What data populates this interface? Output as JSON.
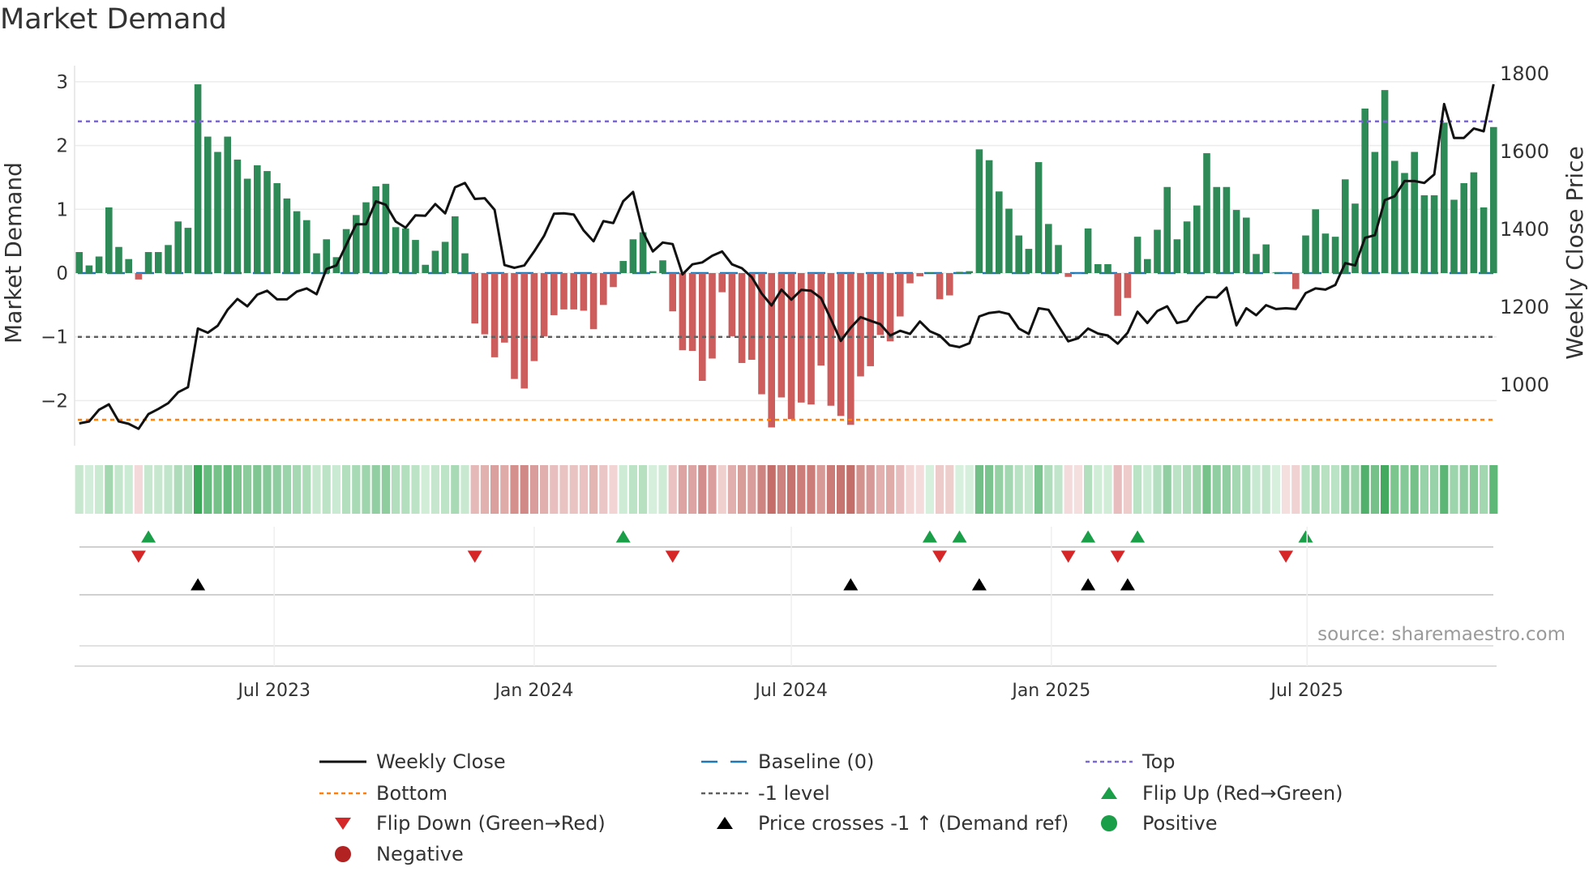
{
  "title": "Market Demand",
  "source_text": "source: sharemaestro.com",
  "colors": {
    "bar_positive": "#2e8b57",
    "bar_negative": "#cd5c5c",
    "close_line": "#111111",
    "baseline": "#1f77b4",
    "top": "#7b68d6",
    "bottom": "#ff7f0e",
    "minus1": "#606060",
    "flip_up": "#1a9e47",
    "flip_down": "#d62728",
    "cross": "#000000",
    "positive": "#1a9e47",
    "negative": "#b22222"
  },
  "chart_data": {
    "type": "bar",
    "title": "Market Demand",
    "ylabel": "Market Demand",
    "y2label": "Weekly Close Price",
    "ylim": [
      -2.71,
      3.25
    ],
    "y2lim": [
      842,
      1819
    ],
    "yticks": [
      "3",
      "2",
      "1",
      "0",
      "−1",
      "−2"
    ],
    "ytick_values": [
      3,
      2,
      1,
      0,
      -1,
      -2
    ],
    "y2ticks": [
      "1800",
      "1600",
      "1400",
      "1200",
      "1000"
    ],
    "y2tick_values": [
      1800,
      1600,
      1400,
      1200,
      1000
    ],
    "grid": true,
    "start_date": "2023-02-13",
    "frequency": "weekly",
    "xticks": [
      {
        "label": "Jul 2023",
        "date": "2023-07-01"
      },
      {
        "label": "Jan 2024",
        "date": "2024-01-01"
      },
      {
        "label": "Jul 2024",
        "date": "2024-07-01"
      },
      {
        "label": "Jan 2025",
        "date": "2025-01-01"
      },
      {
        "label": "Jul 2025",
        "date": "2025-07-01"
      }
    ],
    "reference_lines": {
      "top": 2.38,
      "bottom": -2.3,
      "baseline": 0,
      "minus1": -1
    },
    "demand": [
      0.33,
      0.12,
      0.26,
      1.03,
      0.41,
      0.22,
      -0.1,
      0.33,
      0.33,
      0.44,
      0.81,
      0.71,
      2.96,
      2.14,
      1.9,
      2.14,
      1.78,
      1.48,
      1.69,
      1.6,
      1.41,
      1.17,
      0.97,
      0.83,
      0.31,
      0.53,
      0.25,
      0.69,
      0.91,
      1.11,
      1.36,
      1.4,
      0.72,
      0.7,
      0.52,
      0.13,
      0.35,
      0.49,
      0.89,
      0.31,
      -0.79,
      -0.96,
      -1.32,
      -1.09,
      -1.66,
      -1.81,
      -1.38,
      -0.99,
      -0.66,
      -0.57,
      -0.57,
      -0.59,
      -0.88,
      -0.5,
      -0.22,
      0.19,
      0.53,
      0.64,
      0.03,
      0.2,
      -0.6,
      -1.21,
      -1.22,
      -1.69,
      -1.34,
      -0.3,
      -0.99,
      -1.41,
      -1.36,
      -1.9,
      -2.42,
      -1.95,
      -2.29,
      -2.03,
      -2.06,
      -1.45,
      -2.08,
      -2.24,
      -2.38,
      -1.62,
      -1.46,
      -0.97,
      -1.07,
      -0.68,
      -0.16,
      -0.05,
      0.01,
      -0.41,
      -0.35,
      0.02,
      0.03,
      1.94,
      1.77,
      1.28,
      1.01,
      0.59,
      0.38,
      1.74,
      0.77,
      0.44,
      -0.06,
      -0.01,
      0.7,
      0.14,
      0.14,
      -0.67,
      -0.39,
      0.57,
      0.22,
      0.68,
      1.35,
      0.53,
      0.81,
      1.06,
      1.88,
      1.35,
      1.35,
      0.99,
      0.87,
      0.3,
      0.45,
      0.01,
      -0.01,
      -0.25,
      0.59,
      1.0,
      0.62,
      0.57,
      1.47,
      1.09,
      2.58,
      1.9,
      2.87,
      1.76,
      1.57,
      1.9,
      1.22,
      1.22,
      2.36,
      1.15,
      1.41,
      1.58,
      1.03,
      2.29
    ],
    "weekly_close": [
      899,
      904,
      934,
      948,
      904,
      898,
      885,
      923,
      936,
      951,
      979,
      992,
      1143,
      1132,
      1150,
      1191,
      1219,
      1200,
      1230,
      1240,
      1218,
      1218,
      1238,
      1246,
      1231,
      1296,
      1305,
      1358,
      1411,
      1411,
      1470,
      1461,
      1418,
      1402,
      1434,
      1433,
      1463,
      1439,
      1506,
      1517,
      1476,
      1478,
      1448,
      1306,
      1299,
      1305,
      1341,
      1381,
      1438,
      1439,
      1436,
      1395,
      1367,
      1419,
      1414,
      1470,
      1494,
      1391,
      1341,
      1364,
      1360,
      1282,
      1308,
      1313,
      1330,
      1341,
      1308,
      1298,
      1275,
      1233,
      1202,
      1243,
      1217,
      1242,
      1240,
      1221,
      1167,
      1111,
      1145,
      1172,
      1163,
      1154,
      1125,
      1137,
      1129,
      1161,
      1136,
      1125,
      1100,
      1095,
      1105,
      1174,
      1183,
      1186,
      1180,
      1143,
      1129,
      1195,
      1191,
      1150,
      1110,
      1118,
      1143,
      1130,
      1125,
      1104,
      1132,
      1186,
      1157,
      1188,
      1200,
      1157,
      1163,
      1198,
      1224,
      1223,
      1248,
      1151,
      1195,
      1177,
      1203,
      1193,
      1195,
      1193,
      1234,
      1246,
      1243,
      1255,
      1311,
      1305,
      1376,
      1383,
      1473,
      1483,
      1522,
      1522,
      1517,
      1539,
      1720,
      1633,
      1633,
      1657,
      1650,
      1771
    ],
    "flip_up_weeks": [
      7,
      55,
      86,
      89,
      102,
      107,
      124
    ],
    "flip_down_weeks": [
      6,
      40,
      60,
      87,
      100,
      105,
      122
    ],
    "price_cross_weeks": [
      12,
      78,
      91,
      102,
      106
    ]
  },
  "legend": [
    {
      "key": "close",
      "label": "Weekly Close"
    },
    {
      "key": "baseline",
      "label": "Baseline (0)"
    },
    {
      "key": "top",
      "label": "Top"
    },
    {
      "key": "bottom",
      "label": "Bottom"
    },
    {
      "key": "minus1",
      "label": "-1 level"
    },
    {
      "key": "flip_up",
      "label": "Flip Up (Red→Green)"
    },
    {
      "key": "flip_down",
      "label": "Flip Down (Green→Red)"
    },
    {
      "key": "cross",
      "label": "Price crosses -1 ↑ (Demand ref)"
    },
    {
      "key": "positive",
      "label": "Positive"
    },
    {
      "key": "negative",
      "label": "Negative"
    }
  ]
}
